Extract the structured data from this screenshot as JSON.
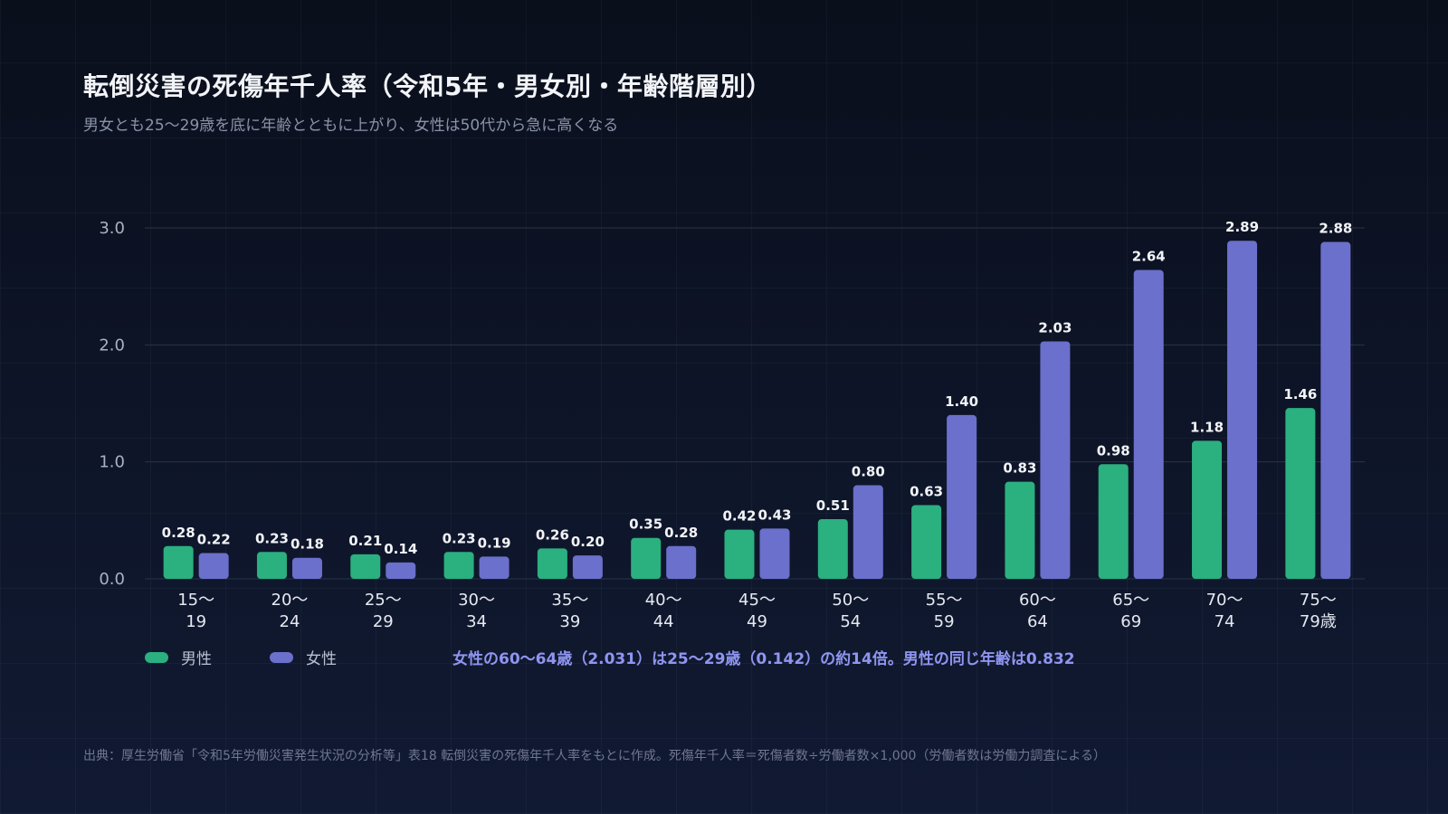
{
  "header": {
    "title": "転倒災害の死傷年千人率（令和5年・男女別・年齢階層別）",
    "subtitle": "男女とも25〜29歳を底に年齢とともに上がり、女性は50代から急に高くなる"
  },
  "legend": {
    "male_label": "男性",
    "female_label": "女性"
  },
  "annotation": "女性の60〜64歳（2.031）は25〜29歳（0.142）の約14倍。男性の同じ年齢は0.832",
  "source": "出典：厚生労働省「令和5年労働災害発生状況の分析等」表18 転倒災害の死傷年千人率をもとに作成。死傷年千人率＝死傷者数÷労働者数×1,000（労働者数は労働力調査による）",
  "colors": {
    "male": "#2bb07f",
    "female": "#6b70cc",
    "grid": "#2a3348",
    "tick_text": "#a9b1c3",
    "label_text": "#e6e9f0",
    "value_text": "#f2f4f8"
  },
  "chart_data": {
    "type": "bar",
    "title": "転倒災害の死傷年千人率（令和5年・男女別・年齢階層別）",
    "subtitle": "男女とも25〜29歳を底に年齢とともに上がり、女性は50代から急に高くなる",
    "xlabel": "",
    "ylabel": "",
    "ylim": [
      0,
      3.0
    ],
    "yticks": [
      "0.0",
      "1.0",
      "2.0",
      "3.0"
    ],
    "grid": true,
    "legend_position": "bottom-left",
    "categories": [
      [
        "15〜",
        "19"
      ],
      [
        "20〜",
        "24"
      ],
      [
        "25〜",
        "29"
      ],
      [
        "30〜",
        "34"
      ],
      [
        "35〜",
        "39"
      ],
      [
        "40〜",
        "44"
      ],
      [
        "45〜",
        "49"
      ],
      [
        "50〜",
        "54"
      ],
      [
        "55〜",
        "59"
      ],
      [
        "60〜",
        "64"
      ],
      [
        "65〜",
        "69"
      ],
      [
        "70〜",
        "74"
      ],
      [
        "75〜",
        "79歳"
      ]
    ],
    "series": [
      {
        "name": "男性",
        "values": [
          0.28,
          0.23,
          0.21,
          0.23,
          0.26,
          0.35,
          0.42,
          0.51,
          0.63,
          0.83,
          0.98,
          1.18,
          1.46
        ],
        "labels": [
          "0.28",
          "0.23",
          "0.21",
          "0.23",
          "0.26",
          "0.35",
          "0.42",
          "0.51",
          "0.63",
          "0.83",
          "0.98",
          "1.18",
          "1.46"
        ]
      },
      {
        "name": "女性",
        "values": [
          0.22,
          0.18,
          0.14,
          0.19,
          0.2,
          0.28,
          0.43,
          0.8,
          1.4,
          2.03,
          2.64,
          2.89,
          2.88
        ],
        "labels": [
          "0.22",
          "0.18",
          "0.14",
          "0.19",
          "0.20",
          "0.28",
          "0.43",
          "0.80",
          "1.40",
          "2.03",
          "2.64",
          "2.89",
          "2.88"
        ]
      }
    ]
  }
}
